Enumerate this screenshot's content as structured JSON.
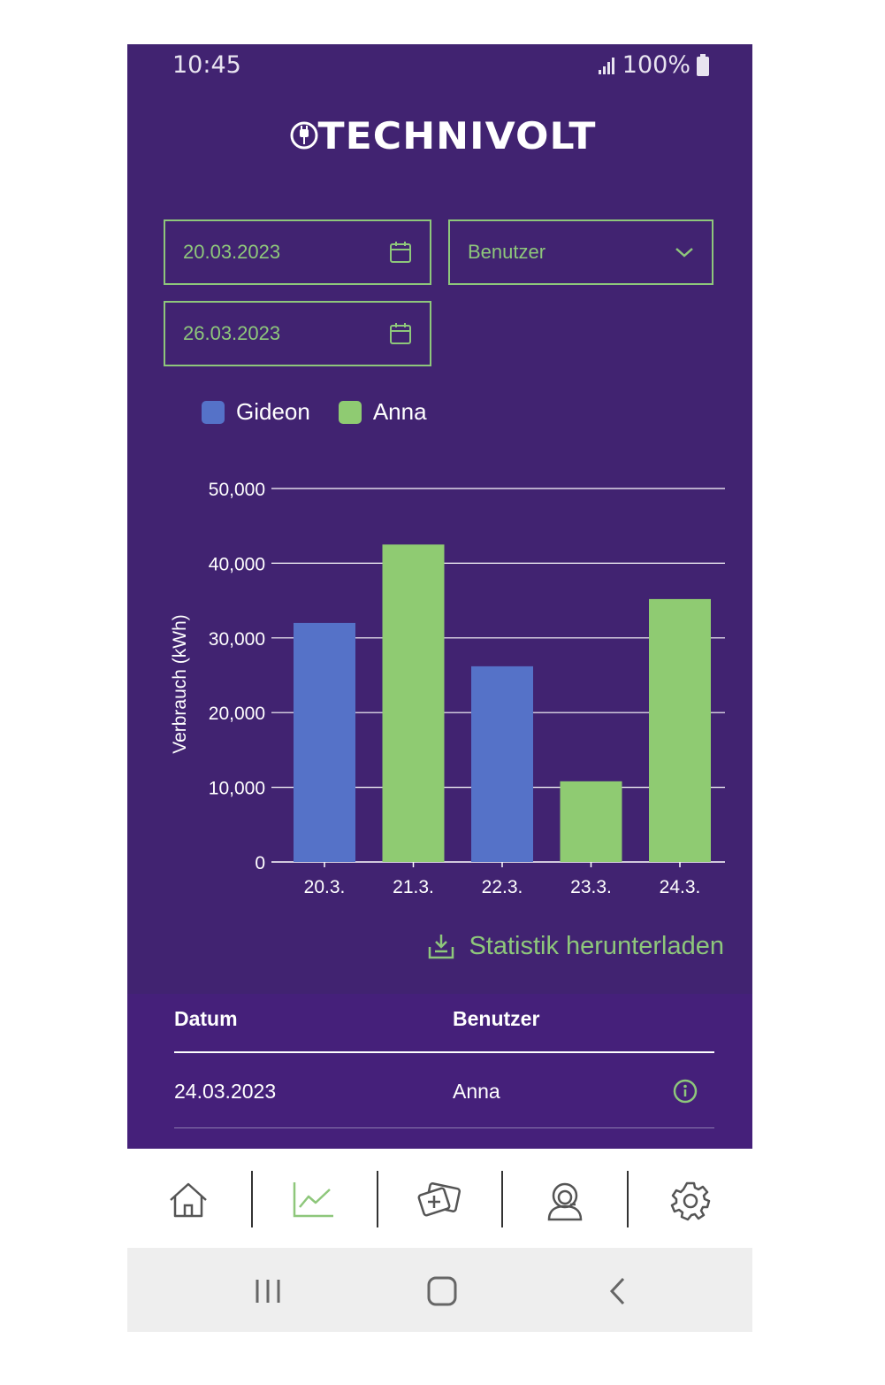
{
  "status": {
    "time": "10:45",
    "battery": "100%"
  },
  "brand": {
    "name": "TECHNIVOLT"
  },
  "filters": {
    "start_date": "20.03.2023",
    "end_date": "26.03.2023",
    "user_select": "Benutzer"
  },
  "colors": {
    "accent": "#8ec77b",
    "background": "#412371",
    "series_gideon": "#5572c8",
    "series_anna": "#8fcb72"
  },
  "chart_data": {
    "type": "bar",
    "categories": [
      "20.3.",
      "21.3.",
      "22.3.",
      "23.3.",
      "24.3."
    ],
    "values": [
      32000,
      42500,
      26200,
      10800,
      35200
    ],
    "bar_series": [
      "Gideon",
      "Anna",
      "Gideon",
      "Anna",
      "Anna"
    ],
    "series": [
      {
        "name": "Gideon",
        "color": "#5572c8"
      },
      {
        "name": "Anna",
        "color": "#8fcb72"
      }
    ],
    "ylabel": "Verbrauch (kWh)",
    "ylim": [
      0,
      50000
    ],
    "yticks": [
      0,
      10000,
      20000,
      30000,
      40000,
      50000
    ],
    "ytick_labels": [
      "0",
      "10,000",
      "20,000",
      "30,000",
      "40,000",
      "50,000"
    ],
    "grid": true,
    "legend": "top-left"
  },
  "download": {
    "label": "Statistik herunterladen",
    "icon": "download-icon"
  },
  "table": {
    "headers": {
      "date": "Datum",
      "user": "Benutzer"
    },
    "rows": [
      {
        "date": "24.03.2023",
        "user": "Anna"
      }
    ]
  },
  "nav": {
    "items": [
      {
        "name": "home",
        "icon": "home-icon"
      },
      {
        "name": "statistics",
        "icon": "chart-icon",
        "active": true
      },
      {
        "name": "add-card",
        "icon": "card-add-icon"
      },
      {
        "name": "support",
        "icon": "support-icon"
      },
      {
        "name": "settings",
        "icon": "gear-icon"
      }
    ]
  }
}
